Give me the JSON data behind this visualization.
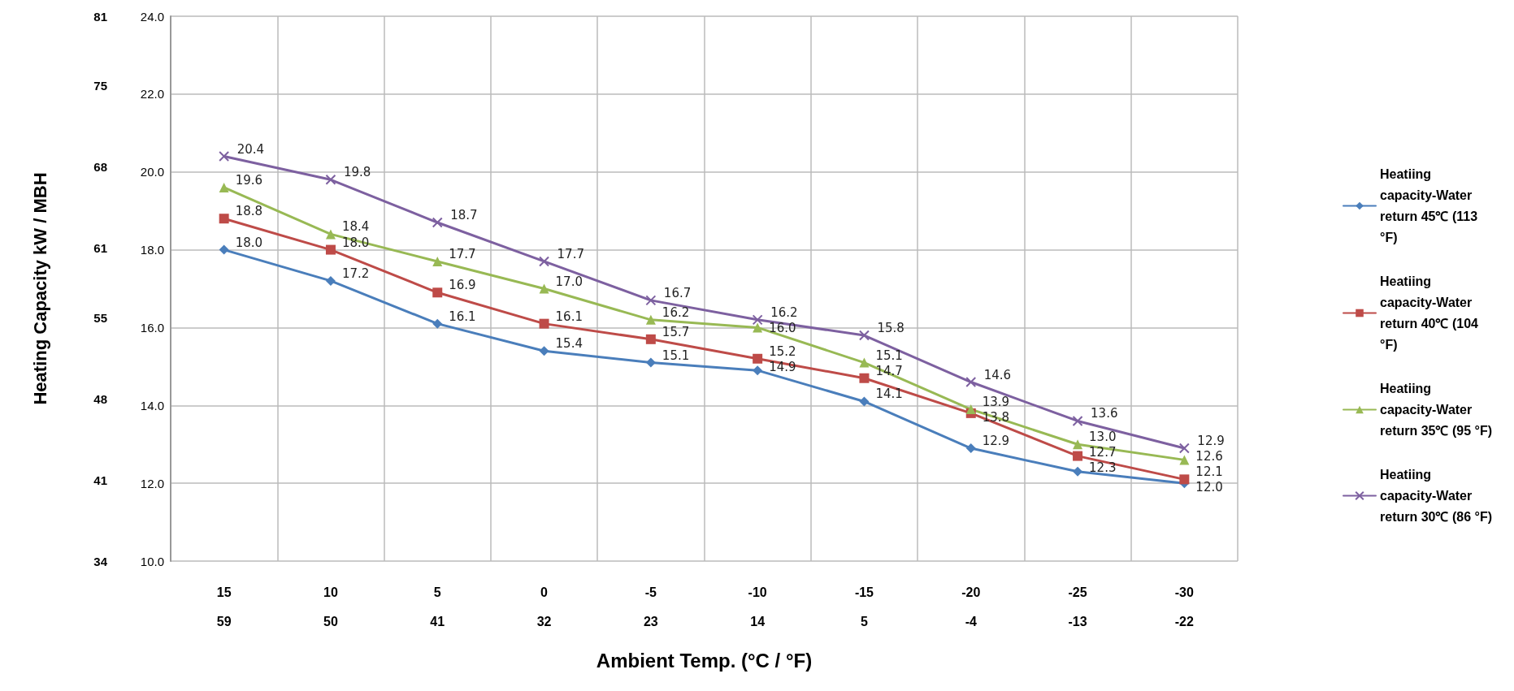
{
  "chart_data": {
    "type": "line",
    "xlabel": "Ambient Temp. (°C / °F)",
    "y2label": "Heating Capacity kW / MBH",
    "categories": [
      "15\n59",
      "10\n50",
      "5\n41",
      "0\n32",
      "-5\n23",
      "-10\n14",
      "-15\n5",
      "-20\n-4",
      "-25\n-13",
      "-30\n-22"
    ],
    "ylim": [
      10,
      24
    ],
    "yticks": [
      {
        "value": 10,
        "label": "10.0"
      },
      {
        "value": 12,
        "label": "12.0"
      },
      {
        "value": 14,
        "label": "14.0"
      },
      {
        "value": 16,
        "label": "16.0"
      },
      {
        "value": 18,
        "label": "18.0"
      },
      {
        "value": 20,
        "label": "20.0"
      },
      {
        "value": 22,
        "label": "22.0"
      },
      {
        "value": 24,
        "label": "24.0"
      }
    ],
    "y2lim": [
      34,
      81
    ],
    "y2ticks": [
      34,
      41,
      48,
      55,
      61,
      68,
      75,
      81
    ],
    "grid": true,
    "legend": "right",
    "line_style": "solid",
    "series": [
      {
        "name": "Heatiing capacity-Water return 45℃ (113 °F)",
        "color": "#4a7ebb",
        "marker": "diamond",
        "values": [
          18.0,
          17.2,
          16.1,
          15.4,
          15.1,
          14.9,
          14.1,
          12.9,
          12.3,
          12.0
        ],
        "value_labels": [
          "18.0",
          "17.2",
          "16.1",
          "15.4",
          "15.1",
          "14.9",
          "14.1",
          "12.9",
          "12.3",
          "12.0"
        ]
      },
      {
        "name": "Heatiing capacity-Water return 40℃ (104 °F)",
        "color": "#be4b48",
        "marker": "square",
        "values": [
          18.8,
          18.0,
          16.9,
          16.1,
          15.7,
          15.2,
          14.7,
          13.8,
          12.7,
          12.1
        ],
        "value_labels": [
          "18.8",
          "18.0",
          "16.9",
          "16.1",
          "15.7",
          "15.2",
          "14.7",
          "13.8",
          "12.7",
          "12.1"
        ]
      },
      {
        "name": "Heatiing capacity-Water return 35℃ (95 °F)",
        "color": "#98b954",
        "marker": "triangle",
        "values": [
          19.6,
          18.4,
          17.7,
          17.0,
          16.2,
          16.0,
          15.1,
          13.9,
          13.0,
          12.6
        ],
        "value_labels": [
          "19.6",
          "18.4",
          "17.7",
          "17.0",
          "16.2",
          "16.0",
          "15.1",
          "13.9",
          "13.0",
          "12.6"
        ]
      },
      {
        "name": "Heatiing capacity-Water return 30℃ (86 °F)",
        "color": "#7d60a0",
        "marker": "cross",
        "values": [
          20.4,
          19.8,
          18.7,
          17.7,
          16.7,
          16.2,
          15.8,
          14.6,
          13.6,
          12.9
        ],
        "value_labels": [
          "20.4",
          "19.8",
          "18.7",
          "17.7",
          "16.7",
          "16.2",
          "15.8",
          "14.6",
          "13.6",
          "12.9"
        ]
      }
    ]
  }
}
